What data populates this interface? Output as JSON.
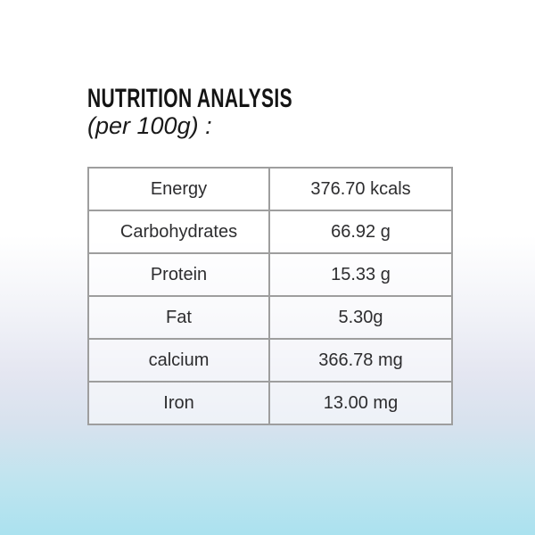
{
  "page": {
    "title": "NUTRITION ANALYSIS",
    "subtitle": "(per 100g) :"
  },
  "table": {
    "rows": [
      {
        "label": "Energy",
        "value": "376.70 kcals"
      },
      {
        "label": "Carbohydrates",
        "value": "66.92 g"
      },
      {
        "label": "Protein",
        "value": "15.33 g"
      },
      {
        "label": "Fat",
        "value": "5.30g"
      },
      {
        "label": "calcium",
        "value": "366.78 mg"
      },
      {
        "label": "Iron",
        "value": "13.00 mg"
      }
    ]
  },
  "colors": {
    "background_top": "#ffffff",
    "background_mid": "#e4e6f1",
    "background_bottom": "#abe2ef",
    "table_border": "#9e9e9e",
    "cell_fill": "rgba(255,255,255,0.55)",
    "text": "#2d2d2f",
    "title_text": "#141414"
  }
}
